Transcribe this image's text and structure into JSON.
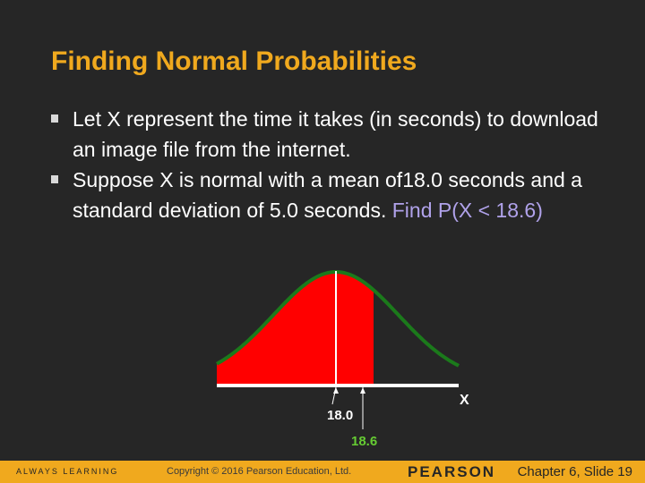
{
  "slide": {
    "title": "Finding Normal Probabilities",
    "bullets": [
      {
        "text": "Let X represent the time it takes (in seconds) to download an image file from the internet."
      },
      {
        "text_before": "Suppose X is normal with a mean of18.0 seconds and a standard deviation of 5.0 seconds.  ",
        "highlight": "Find P(X < 18.6)"
      }
    ],
    "figure": {
      "mean_label": "18.0",
      "value_label": "18.6",
      "axis_label": "X",
      "mean": 18.0,
      "value": 18.6,
      "sd": 5.0
    },
    "footer": {
      "left": "ALWAYS LEARNING",
      "center": "Copyright © 2016 Pearson Education, Ltd.",
      "logo": "PEARSON",
      "right": "Chapter 6, Slide 19"
    },
    "colors": {
      "title": "#F0A91E",
      "highlight": "#B0A2EA",
      "curve": "#1B7A1B",
      "shade": "#FF0000",
      "background": "#262626",
      "footer": "#F0A91E",
      "value_label": "#66CC33"
    }
  }
}
